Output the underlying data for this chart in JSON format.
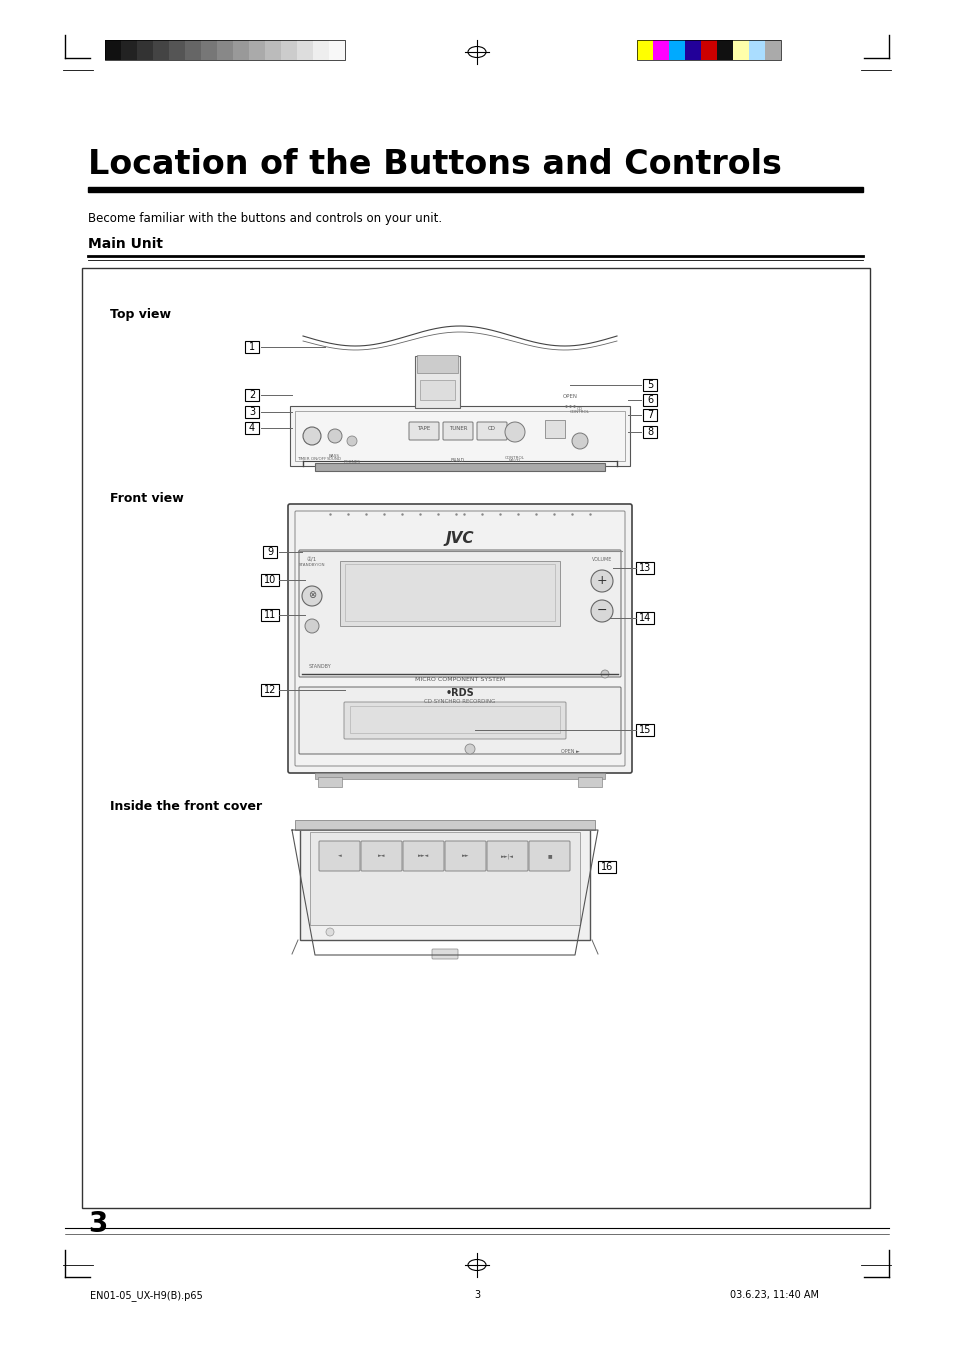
{
  "title": "Location of the Buttons and Controls",
  "subtitle": "Become familiar with the buttons and controls on your unit.",
  "section_title": "Main Unit",
  "page_number": "3",
  "footer_left": "EN01-05_UX-H9(B).p65",
  "footer_center": "3",
  "footer_right": "03.6.23, 11:40 AM",
  "bg_color": "#ffffff",
  "color_bars_left": [
    "#111111",
    "#222222",
    "#333333",
    "#444444",
    "#555555",
    "#666666",
    "#777777",
    "#888888",
    "#999999",
    "#aaaaaa",
    "#bbbbbb",
    "#cccccc",
    "#dddddd",
    "#eeeeee",
    "#f8f8f8"
  ],
  "color_bars_right": [
    "#ffff00",
    "#ff00ff",
    "#00aaff",
    "#220099",
    "#cc0000",
    "#111111",
    "#ffffaa",
    "#aaddff",
    "#aaaaaa"
  ],
  "top_view_label": "Top view",
  "front_view_label": "Front view",
  "inside_label": "Inside the front cover",
  "top_nums_left": [
    "1",
    "2",
    "3",
    "4"
  ],
  "top_nums_right": [
    "5",
    "6",
    "7",
    "8"
  ],
  "front_nums_left": [
    "9",
    "10",
    "11",
    "12"
  ],
  "front_nums_right": [
    "13",
    "14",
    "15"
  ],
  "inside_nums": [
    "16"
  ]
}
